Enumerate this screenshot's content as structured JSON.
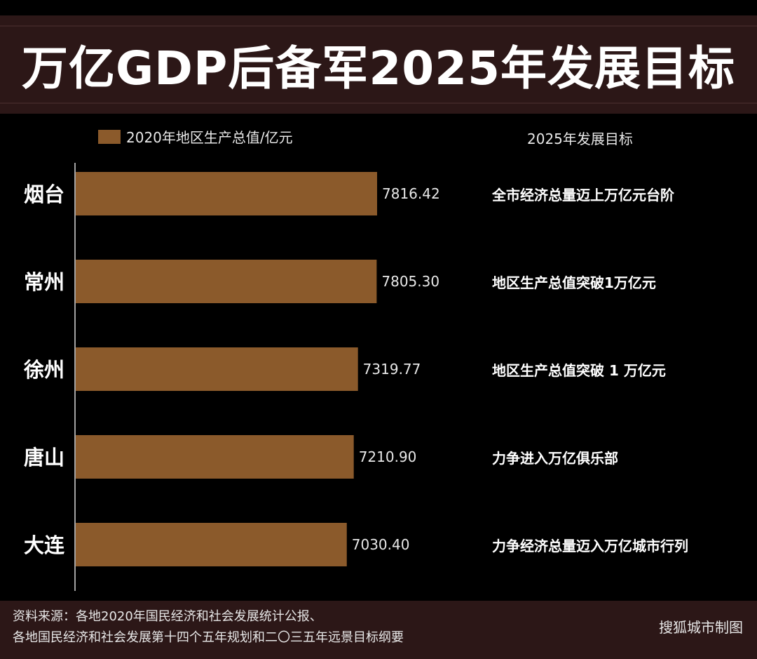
{
  "title": "万亿GDP后备军2025年发展目标",
  "legend_label": "2020年地区生产总值/亿元",
  "targets_header": "2025年发展目标",
  "colors": {
    "bar": "#8b5a2b",
    "background": "#000000",
    "band": "#2c1717",
    "text": "#ffffff"
  },
  "chart_data": {
    "type": "bar",
    "orientation": "horizontal",
    "title": "万亿GDP后备军2025年发展目标",
    "series": [
      {
        "name": "2020年地区生产总值/亿元",
        "values": [
          7816.42,
          7805.3,
          7319.77,
          7210.9,
          7030.4
        ]
      }
    ],
    "categories": [
      "烟台",
      "常州",
      "徐州",
      "唐山",
      "大连"
    ],
    "values": [
      7816.42,
      7805.3,
      7319.77,
      7210.9,
      7030.4
    ],
    "value_labels": [
      "7816.42",
      "7805.30",
      "7319.77",
      "7210.90",
      "7030.40"
    ],
    "xlim": [
      0,
      7816.42
    ],
    "legend": "top-left"
  },
  "targets": [
    "全市经济总量迈上万亿元台阶",
    "地区生产总值突破1万亿元",
    "地区生产总值突破 1 万亿元",
    "力争进入万亿俱乐部",
    "力争经济总量迈入万亿城市行列"
  ],
  "footer": {
    "source_line1": "资料来源：各地2020年国民经济和社会发展统计公报、",
    "source_line2": "各地国民经济和社会发展第十四个五年规划和二〇三五年远景目标纲要",
    "credit": "搜狐城市制图"
  }
}
